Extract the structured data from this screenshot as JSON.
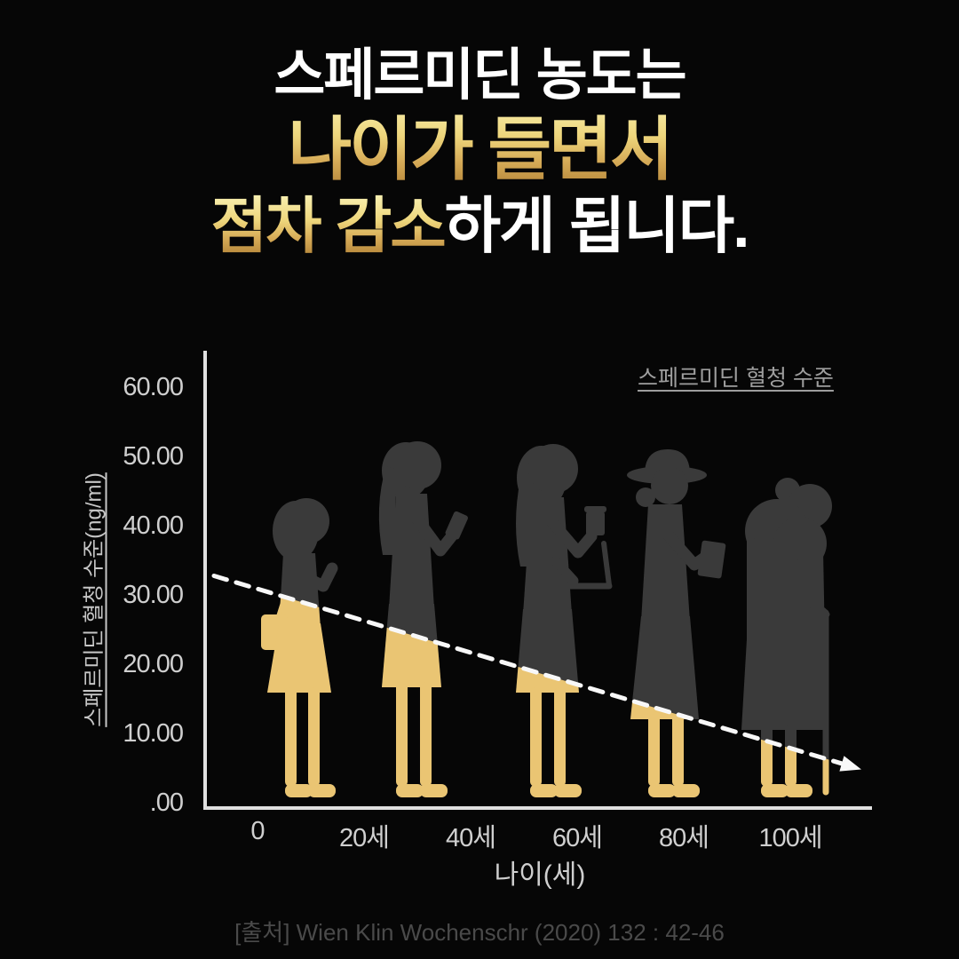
{
  "title": {
    "line1": "스페르미딘 농도는",
    "line2": "나이가 들면서",
    "line3_highlight": "점차 감소",
    "line3_rest": "하게 됩니다."
  },
  "chart_data": {
    "type": "line",
    "legend": "스페르미딘 혈청 수준",
    "ylabel": "스페르미딘 혈청 수준(ng/ml)",
    "xlabel": "나이(세)",
    "y_ticks": [
      "60.00",
      "50.00",
      "40.00",
      "30.00",
      "20.00",
      "10.00",
      ".00"
    ],
    "x_ticks": [
      "0",
      "20세",
      "40세",
      "60세",
      "80세",
      "100세"
    ],
    "x": [
      0,
      20,
      40,
      60,
      80,
      100
    ],
    "ylim": [
      0,
      60
    ],
    "series": [
      {
        "name": "스페르미딘 혈청 수준",
        "values": [
          31,
          26,
          22,
          17,
          13,
          8
        ]
      }
    ],
    "trend_style": "dashed-arrow-declining",
    "figures": [
      "어린이",
      "20대 여성",
      "40대 여성",
      "60대 여성(모자)",
      "고령 여성(지팡이)"
    ],
    "legend_position": "top-right",
    "grid": false
  },
  "source": "[출처] Wien Klin Wochenschr (2020) 132 : 42-46",
  "colors": {
    "background": "#060606",
    "silhouette_gray": "#3a3a3a",
    "silhouette_gold": "#eac573",
    "axis": "#e0e0e0",
    "tick_text": "#cfcfcf",
    "legend_text": "#9e9e9e",
    "source_text": "#4a4a4a",
    "trend_line": "#f8f8f8",
    "gold_text_top": "#f8f0b2",
    "gold_text_bottom": "#ad7d33"
  }
}
